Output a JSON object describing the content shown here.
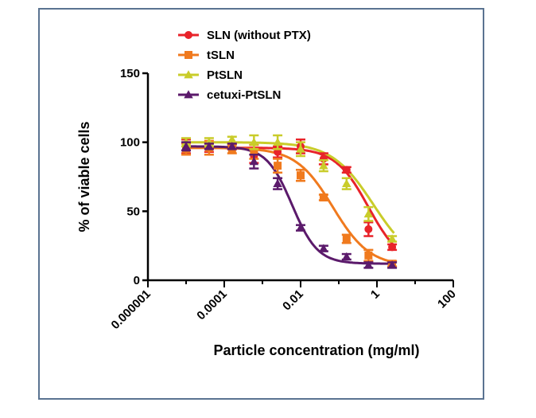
{
  "chart_data": {
    "type": "scatter",
    "title": "",
    "xlabel": "Particle concentration (mg/ml)",
    "ylabel": "% of viable cells",
    "x_scale": "log",
    "xlim": [
      1e-06,
      100
    ],
    "ylim": [
      0,
      150
    ],
    "x_ticks": [
      1e-06,
      0.0001,
      0.01,
      1,
      100
    ],
    "x_tick_labels": [
      "0.000001",
      "0.0001",
      "0.01",
      "1",
      "100"
    ],
    "y_ticks": [
      0,
      50,
      100,
      150
    ],
    "y_tick_labels": [
      "0",
      "50",
      "100",
      "150"
    ],
    "grid": false,
    "legend_position": "top-center",
    "x": [
      1e-05,
      4e-05,
      0.00016,
      0.0006,
      0.0025,
      0.01,
      0.04,
      0.16,
      0.6,
      2.5
    ],
    "series": [
      {
        "name": "SLN (without PTX)",
        "color": "#e8232a",
        "marker": "circle",
        "values": [
          97,
          96,
          97,
          90,
          93,
          97,
          88,
          80,
          37,
          24
        ],
        "errors": [
          5,
          3,
          2,
          5,
          4,
          5,
          4,
          2,
          5,
          2
        ]
      },
      {
        "name": "tSLN",
        "color": "#f07a1e",
        "marker": "square",
        "values": [
          95,
          96,
          95,
          93,
          83,
          76,
          60,
          30,
          18,
          12
        ],
        "errors": [
          4,
          5,
          3,
          5,
          5,
          4,
          2,
          3,
          4,
          2
        ]
      },
      {
        "name": "PtSLN",
        "color": "#c9cc2a",
        "marker": "triangle",
        "values": [
          100,
          100,
          102,
          100,
          100,
          95,
          83,
          70,
          48,
          30
        ],
        "errors": [
          3,
          3,
          2,
          5,
          5,
          5,
          4,
          4,
          5,
          2
        ]
      },
      {
        "name": "cetuxi-PtSLN",
        "color": "#5b1a6b",
        "marker": "triangle",
        "values": [
          97,
          97,
          97,
          86,
          70,
          38,
          23,
          17,
          11,
          11
        ],
        "errors": [
          3,
          2,
          2,
          5,
          4,
          2,
          2,
          2,
          2,
          2
        ]
      }
    ],
    "fits": [
      {
        "series": "SLN (without PTX)",
        "top": 96,
        "bottom": 10,
        "ec50": 0.6,
        "hill": 1.0
      },
      {
        "series": "tSLN",
        "top": 96,
        "bottom": 10,
        "ec50": 0.07,
        "hill": 0.9
      },
      {
        "series": "PtSLN",
        "top": 100,
        "bottom": 10,
        "ec50": 0.8,
        "hill": 0.8
      },
      {
        "series": "cetuxi-PtSLN",
        "top": 97,
        "bottom": 12,
        "ec50": 0.006,
        "hill": 1.3
      }
    ]
  }
}
